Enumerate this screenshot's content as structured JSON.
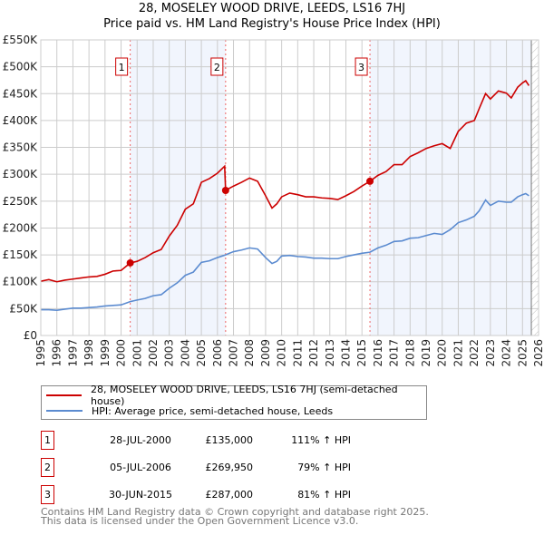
{
  "chart_data": {
    "type": "line",
    "title": "28, MOSELEY WOOD DRIVE, LEEDS, LS16 7HJ",
    "subtitle": "Price paid vs. HM Land Registry's House Price Index (HPI)",
    "xlim": [
      1995,
      2026
    ],
    "ylim": [
      0,
      550000
    ],
    "yticks": [
      0,
      50000,
      100000,
      150000,
      200000,
      250000,
      300000,
      350000,
      400000,
      450000,
      500000,
      550000
    ],
    "ytick_labels": [
      "£0",
      "£50K",
      "£100K",
      "£150K",
      "£200K",
      "£250K",
      "£300K",
      "£350K",
      "£400K",
      "£450K",
      "£500K",
      "£550K"
    ],
    "xtick_labels": [
      "1995",
      "1996",
      "1997",
      "1998",
      "1999",
      "2000",
      "2001",
      "2002",
      "2003",
      "2004",
      "2005",
      "2006",
      "2007",
      "2008",
      "2009",
      "2010",
      "2011",
      "2012",
      "2013",
      "2014",
      "2015",
      "2016",
      "2017",
      "2018",
      "2019",
      "2020",
      "2021",
      "2022",
      "2023",
      "2024",
      "2025",
      "2026"
    ],
    "grid": true,
    "series": [
      {
        "name": "28, MOSELEY WOOD DRIVE, LEEDS, LS16 7HJ (semi-detached house)",
        "color": "#cc0000",
        "x": [
          1995,
          1995.5,
          1996,
          1996.5,
          1997,
          1997.5,
          1998,
          1998.5,
          1999,
          1999.5,
          2000,
          2000.57,
          2001,
          2001.5,
          2002,
          2002.5,
          2003,
          2003.5,
          2004,
          2004.5,
          2005,
          2005.5,
          2006,
          2006.45,
          2006.51,
          2007,
          2007.5,
          2008,
          2008.5,
          2009,
          2009.4,
          2009.7,
          2010,
          2010.5,
          2011,
          2011.5,
          2012,
          2012.5,
          2013,
          2013.5,
          2014,
          2014.5,
          2015,
          2015.5,
          2016,
          2016.5,
          2017,
          2017.5,
          2018,
          2018.5,
          2019,
          2019.5,
          2020,
          2020.5,
          2021,
          2021.5,
          2022,
          2022.3,
          2022.7,
          2023,
          2023.5,
          2024,
          2024.3,
          2024.7,
          2025,
          2025.2,
          2025.4
        ],
        "y": [
          101000,
          104000,
          100000,
          103000,
          105000,
          107000,
          109000,
          110000,
          114000,
          120000,
          121000,
          135000,
          138000,
          145000,
          154000,
          160000,
          185000,
          205000,
          235000,
          245000,
          285000,
          292000,
          302000,
          315000,
          270000,
          278000,
          285000,
          293000,
          287000,
          260000,
          237000,
          245000,
          258000,
          265000,
          262000,
          258000,
          258000,
          256000,
          255000,
          253000,
          260000,
          268000,
          278000,
          287000,
          298000,
          305000,
          318000,
          318000,
          333000,
          340000,
          348000,
          353000,
          357000,
          348000,
          380000,
          395000,
          400000,
          422000,
          450000,
          440000,
          455000,
          451000,
          442000,
          462000,
          470000,
          474000,
          465000
        ]
      },
      {
        "name": "HPI: Average price, semi-detached house, Leeds",
        "color": "#5b8bd0",
        "x": [
          1995,
          1995.5,
          1996,
          1996.5,
          1997,
          1997.5,
          1998,
          1998.5,
          1999,
          1999.5,
          2000,
          2000.57,
          2001,
          2001.5,
          2002,
          2002.5,
          2003,
          2003.5,
          2004,
          2004.5,
          2005,
          2005.5,
          2006,
          2006.5,
          2007,
          2007.5,
          2008,
          2008.5,
          2009,
          2009.4,
          2009.7,
          2010,
          2010.5,
          2011,
          2011.5,
          2012,
          2012.5,
          2013,
          2013.5,
          2014,
          2014.5,
          2015,
          2015.5,
          2016,
          2016.5,
          2017,
          2017.5,
          2018,
          2018.5,
          2019,
          2019.5,
          2020,
          2020.5,
          2021,
          2021.5,
          2022,
          2022.3,
          2022.7,
          2023,
          2023.5,
          2024,
          2024.3,
          2024.7,
          2025,
          2025.2,
          2025.4
        ],
        "y": [
          48000,
          48000,
          47000,
          49000,
          51000,
          51000,
          52000,
          53000,
          55000,
          56000,
          57000,
          63000,
          66000,
          69000,
          74000,
          76000,
          88000,
          98000,
          112000,
          118000,
          136000,
          139000,
          145000,
          150000,
          156000,
          159000,
          163000,
          161000,
          145000,
          134000,
          138000,
          148000,
          149000,
          147000,
          146000,
          144000,
          144000,
          143000,
          143000,
          147000,
          150000,
          153000,
          155000,
          163000,
          168000,
          175000,
          176000,
          181000,
          182000,
          186000,
          190000,
          188000,
          197000,
          210000,
          215000,
          222000,
          232000,
          252000,
          242000,
          250000,
          248000,
          248000,
          258000,
          262000,
          264000,
          260000
        ]
      }
    ],
    "sales": [
      {
        "label": "1",
        "x": 2000.57,
        "y": 135000
      },
      {
        "label": "2",
        "x": 2006.51,
        "y": 269950
      },
      {
        "label": "3",
        "x": 2015.5,
        "y": 287000
      }
    ],
    "shaded_periods": [
      [
        2000.57,
        2006.51
      ],
      [
        2015.5,
        2025.55
      ]
    ],
    "hatched_from": 2025.55
  },
  "legend": {
    "red": "28, MOSELEY WOOD DRIVE, LEEDS, LS16 7HJ (semi-detached house)",
    "blue": "HPI: Average price, semi-detached house, Leeds"
  },
  "transactions": [
    {
      "num": "1",
      "date": "28-JUL-2000",
      "price": "£135,000",
      "pct": "111% ↑ HPI"
    },
    {
      "num": "2",
      "date": "05-JUL-2006",
      "price": "£269,950",
      "pct": "79% ↑ HPI"
    },
    {
      "num": "3",
      "date": "30-JUN-2015",
      "price": "£287,000",
      "pct": "81% ↑ HPI"
    }
  ],
  "footer": {
    "line1": "Contains HM Land Registry data © Crown copyright and database right 2025.",
    "line2": "This data is licensed under the Open Government Licence v3.0."
  }
}
